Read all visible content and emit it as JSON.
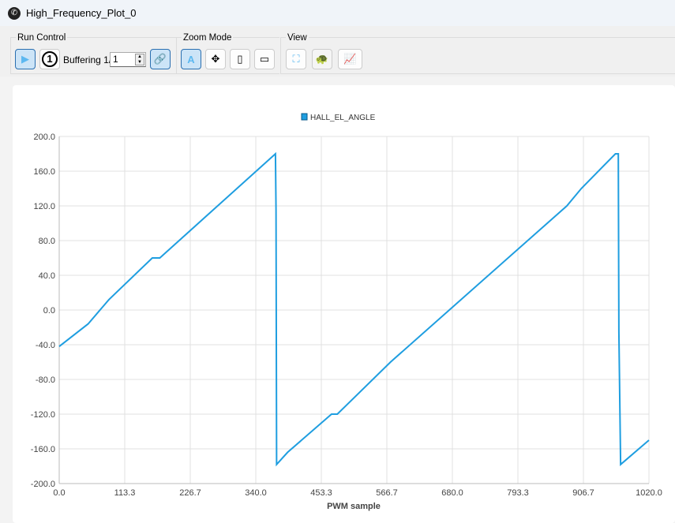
{
  "window": {
    "title": "High_Frequency_Plot_0",
    "icon": "app-logo-icon"
  },
  "toolbar": {
    "run_control": {
      "label": "Run Control",
      "play_icon": "play-icon",
      "single_icon": "single-shot-icon",
      "single_text": "1",
      "buffering_label": "Buffering 1/",
      "buffering_value": "1",
      "link_icon": "link-icon"
    },
    "zoom_mode": {
      "label": "Zoom Mode",
      "buttons": [
        "auto-zoom-icon",
        "zoom-both-icon",
        "zoom-vertical-icon",
        "zoom-horizontal-icon"
      ]
    },
    "view": {
      "label": "View",
      "buttons": [
        "fit-view-icon",
        "turtle-icon",
        "chart-line-icon"
      ]
    }
  },
  "chart_data": {
    "type": "line",
    "xlabel": "PWM sample",
    "ylabel": "",
    "xlim": [
      0,
      1020
    ],
    "ylim": [
      -200,
      200
    ],
    "xticks": [
      "0.0",
      "113.3",
      "226.7",
      "340.0",
      "453.3",
      "566.7",
      "680.0",
      "793.3",
      "906.7",
      "1020.0"
    ],
    "yticks": [
      "200.0",
      "160.0",
      "120.0",
      "80.0",
      "40.0",
      "0.0",
      "-40.0",
      "-80.0",
      "-120.0",
      "-160.0",
      "-200.0"
    ],
    "grid": true,
    "legend": "top-center",
    "series": [
      {
        "name": "HALL_EL_ANGLE",
        "color": "#1f9ee0",
        "x": [
          0,
          50,
          86,
          161,
          174,
          374,
          375,
          376,
          395,
          471,
          481,
          573,
          878,
          903,
          962,
          967,
          968,
          971,
          1020
        ],
        "y": [
          -42,
          -16,
          12,
          60,
          60,
          180,
          115,
          -178,
          -164,
          -120,
          -120,
          -60,
          120,
          140,
          180,
          180,
          -25,
          -178,
          -150
        ]
      }
    ]
  }
}
